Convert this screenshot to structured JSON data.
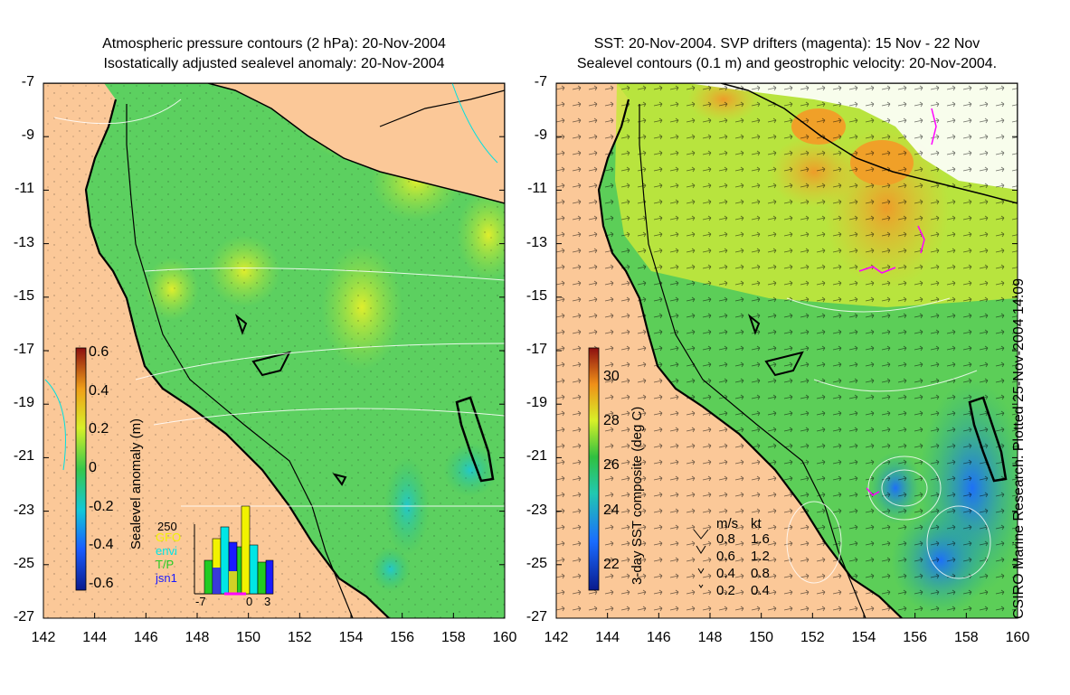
{
  "left_panel": {
    "title_line1": "Atmospheric pressure contours (2 hPa): 20-Nov-2004",
    "title_line2": "Isostatically adjusted sealevel anomaly: 20-Nov-2004",
    "colorbar": {
      "label": "Sealevel anomaly (m)",
      "ticks": [
        "0.6",
        "0.4",
        "0.2",
        "0",
        "-0.2",
        "-0.4",
        "-0.6"
      ],
      "range": [
        -0.6,
        0.6
      ]
    },
    "histogram": {
      "ymax_label": "250",
      "legend": [
        {
          "label": "GFO",
          "color": "#f2f200"
        },
        {
          "label": "envi",
          "color": "#00e6e6"
        },
        {
          "label": "T/P",
          "color": "#22cc22"
        },
        {
          "label": "jsn1",
          "color": "#1a1aff"
        }
      ],
      "x_ticks": [
        "-7",
        "0",
        "3"
      ]
    }
  },
  "right_panel": {
    "title_line1": "SST: 20-Nov-2004. SVP drifters (magenta): 15 Nov - 22 Nov",
    "title_line2": "Sealevel contours (0.1 m) and geostrophic velocity: 20-Nov-2004.",
    "colorbar": {
      "label": "3-day SST composite (deg C)",
      "ticks": [
        "30",
        "28",
        "26",
        "24",
        "22"
      ],
      "range": [
        21,
        31
      ]
    },
    "velocity_legend": {
      "header_ms": "m/s",
      "header_kt": "kt",
      "rows": [
        {
          "ms": "0.8",
          "kt": "1.6"
        },
        {
          "ms": "0.6",
          "kt": "1.2"
        },
        {
          "ms": "0.4",
          "kt": "0.8"
        },
        {
          "ms": "0.2",
          "kt": "0.4"
        }
      ]
    }
  },
  "axes": {
    "lat_labels": [
      "-7",
      "-9",
      "-11",
      "-13",
      "-15",
      "-17",
      "-19",
      "-21",
      "-23",
      "-25",
      "-27"
    ],
    "lon_labels": [
      "142",
      "144",
      "146",
      "148",
      "150",
      "152",
      "154",
      "156",
      "158",
      "160"
    ]
  },
  "credit": "CSIRO Marine Research. Plotted 25-Nov-2004 14:09",
  "colors": {
    "land": "#fbc898",
    "ocean_green": "#4fd06a",
    "sst_warm": "#f0a020"
  }
}
